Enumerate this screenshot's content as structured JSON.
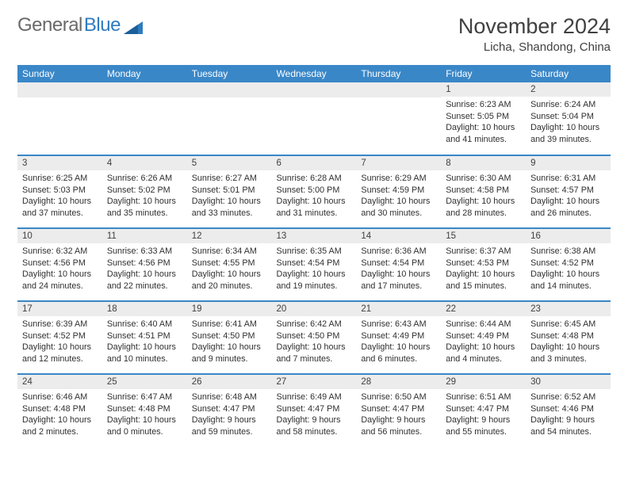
{
  "logo": {
    "part1": "General",
    "part2": "Blue"
  },
  "header": {
    "month_title": "November 2024",
    "location": "Licha, Shandong, China"
  },
  "colors": {
    "header_bg": "#3a87c8",
    "header_text": "#ffffff",
    "daynum_bg": "#ececec",
    "row_line": "#3a87c8",
    "logo_gray": "#6a6a6a",
    "logo_blue": "#2f7bbf",
    "text": "#303030"
  },
  "day_headers": [
    "Sunday",
    "Monday",
    "Tuesday",
    "Wednesday",
    "Thursday",
    "Friday",
    "Saturday"
  ],
  "weeks": [
    [
      {
        "empty": true
      },
      {
        "empty": true
      },
      {
        "empty": true
      },
      {
        "empty": true
      },
      {
        "empty": true
      },
      {
        "n": "1",
        "sunrise": "Sunrise: 6:23 AM",
        "sunset": "Sunset: 5:05 PM",
        "daylight": "Daylight: 10 hours and 41 minutes."
      },
      {
        "n": "2",
        "sunrise": "Sunrise: 6:24 AM",
        "sunset": "Sunset: 5:04 PM",
        "daylight": "Daylight: 10 hours and 39 minutes."
      }
    ],
    [
      {
        "n": "3",
        "sunrise": "Sunrise: 6:25 AM",
        "sunset": "Sunset: 5:03 PM",
        "daylight": "Daylight: 10 hours and 37 minutes."
      },
      {
        "n": "4",
        "sunrise": "Sunrise: 6:26 AM",
        "sunset": "Sunset: 5:02 PM",
        "daylight": "Daylight: 10 hours and 35 minutes."
      },
      {
        "n": "5",
        "sunrise": "Sunrise: 6:27 AM",
        "sunset": "Sunset: 5:01 PM",
        "daylight": "Daylight: 10 hours and 33 minutes."
      },
      {
        "n": "6",
        "sunrise": "Sunrise: 6:28 AM",
        "sunset": "Sunset: 5:00 PM",
        "daylight": "Daylight: 10 hours and 31 minutes."
      },
      {
        "n": "7",
        "sunrise": "Sunrise: 6:29 AM",
        "sunset": "Sunset: 4:59 PM",
        "daylight": "Daylight: 10 hours and 30 minutes."
      },
      {
        "n": "8",
        "sunrise": "Sunrise: 6:30 AM",
        "sunset": "Sunset: 4:58 PM",
        "daylight": "Daylight: 10 hours and 28 minutes."
      },
      {
        "n": "9",
        "sunrise": "Sunrise: 6:31 AM",
        "sunset": "Sunset: 4:57 PM",
        "daylight": "Daylight: 10 hours and 26 minutes."
      }
    ],
    [
      {
        "n": "10",
        "sunrise": "Sunrise: 6:32 AM",
        "sunset": "Sunset: 4:56 PM",
        "daylight": "Daylight: 10 hours and 24 minutes."
      },
      {
        "n": "11",
        "sunrise": "Sunrise: 6:33 AM",
        "sunset": "Sunset: 4:56 PM",
        "daylight": "Daylight: 10 hours and 22 minutes."
      },
      {
        "n": "12",
        "sunrise": "Sunrise: 6:34 AM",
        "sunset": "Sunset: 4:55 PM",
        "daylight": "Daylight: 10 hours and 20 minutes."
      },
      {
        "n": "13",
        "sunrise": "Sunrise: 6:35 AM",
        "sunset": "Sunset: 4:54 PM",
        "daylight": "Daylight: 10 hours and 19 minutes."
      },
      {
        "n": "14",
        "sunrise": "Sunrise: 6:36 AM",
        "sunset": "Sunset: 4:54 PM",
        "daylight": "Daylight: 10 hours and 17 minutes."
      },
      {
        "n": "15",
        "sunrise": "Sunrise: 6:37 AM",
        "sunset": "Sunset: 4:53 PM",
        "daylight": "Daylight: 10 hours and 15 minutes."
      },
      {
        "n": "16",
        "sunrise": "Sunrise: 6:38 AM",
        "sunset": "Sunset: 4:52 PM",
        "daylight": "Daylight: 10 hours and 14 minutes."
      }
    ],
    [
      {
        "n": "17",
        "sunrise": "Sunrise: 6:39 AM",
        "sunset": "Sunset: 4:52 PM",
        "daylight": "Daylight: 10 hours and 12 minutes."
      },
      {
        "n": "18",
        "sunrise": "Sunrise: 6:40 AM",
        "sunset": "Sunset: 4:51 PM",
        "daylight": "Daylight: 10 hours and 10 minutes."
      },
      {
        "n": "19",
        "sunrise": "Sunrise: 6:41 AM",
        "sunset": "Sunset: 4:50 PM",
        "daylight": "Daylight: 10 hours and 9 minutes."
      },
      {
        "n": "20",
        "sunrise": "Sunrise: 6:42 AM",
        "sunset": "Sunset: 4:50 PM",
        "daylight": "Daylight: 10 hours and 7 minutes."
      },
      {
        "n": "21",
        "sunrise": "Sunrise: 6:43 AM",
        "sunset": "Sunset: 4:49 PM",
        "daylight": "Daylight: 10 hours and 6 minutes."
      },
      {
        "n": "22",
        "sunrise": "Sunrise: 6:44 AM",
        "sunset": "Sunset: 4:49 PM",
        "daylight": "Daylight: 10 hours and 4 minutes."
      },
      {
        "n": "23",
        "sunrise": "Sunrise: 6:45 AM",
        "sunset": "Sunset: 4:48 PM",
        "daylight": "Daylight: 10 hours and 3 minutes."
      }
    ],
    [
      {
        "n": "24",
        "sunrise": "Sunrise: 6:46 AM",
        "sunset": "Sunset: 4:48 PM",
        "daylight": "Daylight: 10 hours and 2 minutes."
      },
      {
        "n": "25",
        "sunrise": "Sunrise: 6:47 AM",
        "sunset": "Sunset: 4:48 PM",
        "daylight": "Daylight: 10 hours and 0 minutes."
      },
      {
        "n": "26",
        "sunrise": "Sunrise: 6:48 AM",
        "sunset": "Sunset: 4:47 PM",
        "daylight": "Daylight: 9 hours and 59 minutes."
      },
      {
        "n": "27",
        "sunrise": "Sunrise: 6:49 AM",
        "sunset": "Sunset: 4:47 PM",
        "daylight": "Daylight: 9 hours and 58 minutes."
      },
      {
        "n": "28",
        "sunrise": "Sunrise: 6:50 AM",
        "sunset": "Sunset: 4:47 PM",
        "daylight": "Daylight: 9 hours and 56 minutes."
      },
      {
        "n": "29",
        "sunrise": "Sunrise: 6:51 AM",
        "sunset": "Sunset: 4:47 PM",
        "daylight": "Daylight: 9 hours and 55 minutes."
      },
      {
        "n": "30",
        "sunrise": "Sunrise: 6:52 AM",
        "sunset": "Sunset: 4:46 PM",
        "daylight": "Daylight: 9 hours and 54 minutes."
      }
    ]
  ]
}
